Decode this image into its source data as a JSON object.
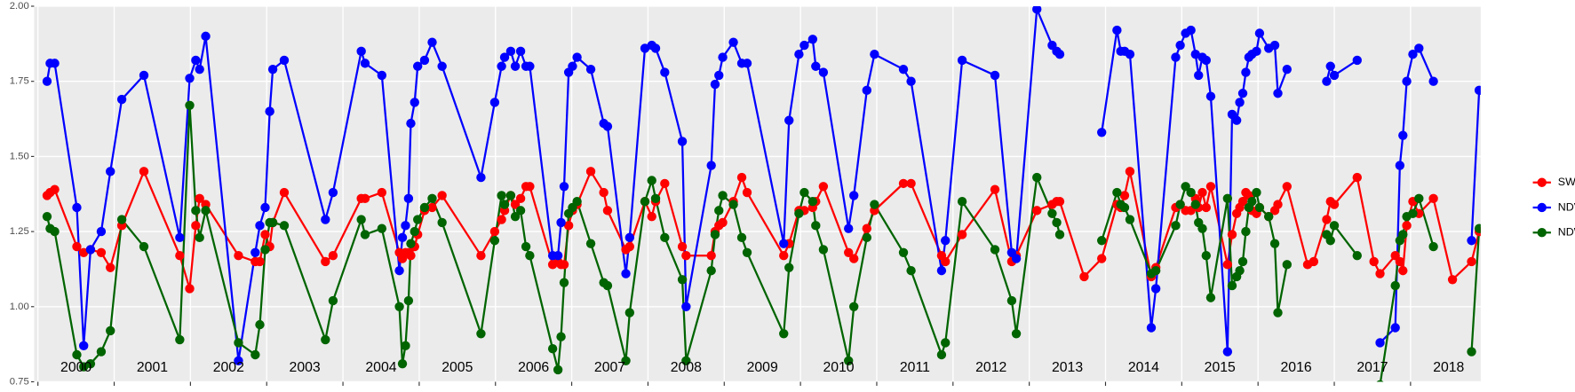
{
  "chart_data": {
    "type": "line",
    "x": [
      2000.12,
      2000.16,
      2000.22,
      2000.51,
      2000.6,
      2000.69,
      2000.83,
      2000.95,
      2001.1,
      2001.39,
      2001.86,
      2001.99,
      2002.07,
      2002.12,
      2002.2,
      2002.63,
      2002.85,
      2002.91,
      2002.98,
      2003.04,
      2003.08,
      2003.23,
      2003.77,
      2003.87,
      2004.24,
      2004.29,
      2004.51,
      2004.74,
      2004.78,
      2004.82,
      2004.86,
      2004.89,
      2004.94,
      2004.98,
      2005.07,
      2005.17,
      2005.3,
      2005.81,
      2005.99,
      2006.08,
      2006.12,
      2006.2,
      2006.26,
      2006.33,
      2006.4,
      2006.45,
      2006.75,
      2006.82,
      2006.86,
      2006.9,
      2006.96,
      2007.01,
      2007.07,
      2007.25,
      2007.42,
      2007.47,
      2007.71,
      2007.76,
      2007.96,
      2008.05,
      2008.1,
      2008.22,
      2008.45,
      2008.5,
      2008.83,
      2008.88,
      2008.93,
      2008.98,
      2009.12,
      2009.23,
      2009.3,
      2009.78,
      2009.85,
      2009.98,
      2010.05,
      2010.16,
      2010.2,
      2010.3,
      2010.63,
      2010.7,
      2010.87,
      2010.97,
      2011.35,
      2011.45,
      2011.85,
      2011.9,
      2012.12,
      2012.55,
      2012.77,
      2012.83,
      2013.1,
      2013.3,
      2013.36,
      2013.4,
      2013.72,
      2013.95,
      2014.15,
      2014.2,
      2014.25,
      2014.32,
      2014.6,
      2014.66,
      2014.92,
      2014.98,
      2015.05,
      2015.12,
      2015.18,
      2015.22,
      2015.27,
      2015.32,
      2015.38,
      2015.6,
      2015.66,
      2015.72,
      2015.76,
      2015.8,
      2015.84,
      2015.88,
      2015.92,
      2015.98,
      2016.02,
      2016.14,
      2016.22,
      2016.26,
      2016.38,
      2016.65,
      2016.73,
      2016.9,
      2016.95,
      2017.0,
      2017.3,
      2017.52,
      2017.6,
      2017.8,
      2017.86,
      2017.9,
      2017.95,
      2018.03,
      2018.11,
      2018.3,
      2018.55,
      2018.8,
      2018.9
    ],
    "series": [
      {
        "name": "SWIR",
        "color": "#ff0000",
        "values": [
          1.37,
          1.38,
          1.39,
          1.2,
          1.18,
          1.19,
          1.18,
          1.13,
          1.27,
          1.45,
          1.17,
          1.06,
          1.27,
          1.36,
          1.34,
          1.17,
          1.15,
          1.15,
          1.24,
          1.2,
          1.28,
          1.38,
          1.15,
          1.17,
          1.36,
          1.36,
          1.38,
          1.18,
          1.16,
          1.18,
          1.18,
          1.17,
          1.2,
          1.24,
          1.32,
          1.33,
          1.37,
          1.17,
          1.25,
          1.29,
          1.32,
          1.37,
          1.34,
          1.36,
          1.4,
          1.4,
          1.14,
          1.15,
          1.14,
          1.14,
          1.27,
          1.32,
          1.34,
          1.45,
          1.38,
          1.32,
          1.19,
          1.2,
          1.35,
          1.3,
          1.35,
          1.41,
          1.2,
          1.17,
          1.17,
          1.25,
          1.27,
          1.28,
          1.35,
          1.43,
          1.38,
          1.17,
          1.21,
          1.32,
          1.32,
          1.33,
          1.35,
          1.4,
          1.18,
          1.16,
          1.26,
          1.32,
          1.41,
          1.41,
          1.17,
          1.15,
          1.24,
          1.39,
          1.15,
          1.17,
          1.32,
          1.34,
          1.35,
          1.35,
          1.1,
          1.16,
          1.34,
          1.33,
          1.37,
          1.45,
          1.1,
          1.13,
          1.33,
          1.34,
          1.32,
          1.32,
          1.36,
          1.33,
          1.38,
          1.33,
          1.4,
          1.14,
          1.24,
          1.31,
          1.33,
          1.35,
          1.38,
          1.37,
          1.32,
          1.31,
          1.33,
          1.3,
          1.32,
          1.34,
          1.4,
          1.14,
          1.15,
          1.29,
          1.35,
          1.34,
          1.43,
          1.15,
          1.11,
          1.17,
          1.15,
          1.12,
          1.27,
          1.35,
          1.31,
          1.36,
          1.09,
          1.15,
          1.25
        ]
      },
      {
        "name": "NDVI",
        "color": "#0000ff",
        "values": [
          1.75,
          1.81,
          1.81,
          1.33,
          0.87,
          1.19,
          1.25,
          1.45,
          1.69,
          1.77,
          1.23,
          1.76,
          1.82,
          1.79,
          1.9,
          0.82,
          1.18,
          1.27,
          1.33,
          1.65,
          1.79,
          1.82,
          1.29,
          1.38,
          1.85,
          1.81,
          1.77,
          1.12,
          1.23,
          1.27,
          1.36,
          1.61,
          1.68,
          1.8,
          1.82,
          1.88,
          1.8,
          1.43,
          1.68,
          1.8,
          1.83,
          1.85,
          1.8,
          1.85,
          1.8,
          1.8,
          1.17,
          1.17,
          1.28,
          1.4,
          1.78,
          1.8,
          1.83,
          1.79,
          1.61,
          1.6,
          1.11,
          1.23,
          1.86,
          1.87,
          1.86,
          1.78,
          1.55,
          1.0,
          1.47,
          1.74,
          1.77,
          1.83,
          1.88,
          1.81,
          1.81,
          1.21,
          1.62,
          1.84,
          1.87,
          1.89,
          1.8,
          1.78,
          1.26,
          1.37,
          1.72,
          1.84,
          1.79,
          1.75,
          1.12,
          1.22,
          1.82,
          1.77,
          1.18,
          1.16,
          1.99,
          1.87,
          1.85,
          1.84,
          null,
          1.58,
          1.92,
          1.85,
          1.85,
          1.84,
          0.93,
          1.06,
          1.83,
          1.87,
          1.91,
          1.92,
          1.84,
          1.77,
          1.83,
          1.82,
          1.7,
          0.85,
          1.64,
          1.62,
          1.68,
          1.71,
          1.78,
          1.83,
          1.84,
          1.85,
          1.91,
          1.86,
          1.87,
          1.71,
          1.79,
          null,
          null,
          1.75,
          1.8,
          1.77,
          1.82,
          null,
          0.88,
          0.93,
          1.47,
          1.57,
          1.75,
          1.84,
          1.86,
          1.75,
          null,
          1.22,
          1.72
        ]
      },
      {
        "name": "NDWI",
        "color": "#006400",
        "values": [
          1.3,
          1.26,
          1.25,
          0.84,
          0.8,
          0.81,
          0.85,
          0.92,
          1.29,
          1.2,
          0.89,
          1.67,
          1.32,
          1.23,
          1.32,
          0.88,
          0.84,
          0.94,
          1.19,
          1.28,
          1.28,
          1.27,
          0.89,
          1.02,
          1.29,
          1.24,
          1.26,
          1.0,
          0.81,
          0.87,
          1.02,
          1.21,
          1.25,
          1.29,
          1.33,
          1.36,
          1.28,
          0.91,
          1.22,
          1.37,
          1.34,
          1.37,
          1.3,
          1.32,
          1.2,
          1.17,
          0.86,
          0.79,
          0.9,
          1.08,
          1.31,
          1.33,
          1.35,
          1.21,
          1.08,
          1.07,
          0.82,
          0.98,
          1.35,
          1.42,
          1.36,
          1.23,
          1.09,
          0.82,
          1.12,
          1.24,
          1.32,
          1.37,
          1.34,
          1.23,
          1.18,
          0.91,
          1.13,
          1.31,
          1.38,
          1.35,
          1.27,
          1.19,
          0.82,
          1.0,
          1.23,
          1.34,
          1.18,
          1.12,
          0.84,
          0.88,
          1.35,
          1.19,
          1.02,
          0.91,
          1.43,
          1.31,
          1.28,
          1.24,
          null,
          1.22,
          1.38,
          1.34,
          1.33,
          1.29,
          1.11,
          1.12,
          1.27,
          1.34,
          1.4,
          1.38,
          1.34,
          1.28,
          1.26,
          1.17,
          1.03,
          1.36,
          1.07,
          1.1,
          1.12,
          1.15,
          1.25,
          1.33,
          1.35,
          1.38,
          1.33,
          1.3,
          1.21,
          0.98,
          1.14,
          null,
          null,
          1.24,
          1.22,
          1.27,
          1.17,
          null,
          0.74,
          1.07,
          1.22,
          1.24,
          1.3,
          1.31,
          1.36,
          1.2,
          null,
          0.85,
          1.26
        ]
      }
    ],
    "xlim": [
      1999.95,
      2018.92
    ],
    "xticks": [
      2000,
      2001,
      2002,
      2003,
      2004,
      2005,
      2006,
      2007,
      2008,
      2009,
      2010,
      2011,
      2012,
      2013,
      2014,
      2015,
      2016,
      2017,
      2018
    ],
    "ylim": [
      0.75,
      2.0
    ],
    "yticks": [
      0.75,
      {
        "value": 1.0,
        "label": "1.00"
      },
      1.25,
      {
        "value": 1.5,
        "label": "1.50"
      },
      1.75,
      {
        "value": 2.0,
        "label": "2.00"
      }
    ],
    "annotations": [
      {
        "text": "2000",
        "x": 2000.5
      },
      {
        "text": "2001",
        "x": 2001.5
      },
      {
        "text": "2002",
        "x": 2002.5
      },
      {
        "text": "2003",
        "x": 2003.5
      },
      {
        "text": "2004",
        "x": 2004.5
      },
      {
        "text": "2005",
        "x": 2005.5
      },
      {
        "text": "2006",
        "x": 2006.5
      },
      {
        "text": "2007",
        "x": 2007.5
      },
      {
        "text": "2008",
        "x": 2008.5
      },
      {
        "text": "2009",
        "x": 2009.5
      },
      {
        "text": "2010",
        "x": 2010.5
      },
      {
        "text": "2011",
        "x": 2011.5
      },
      {
        "text": "2012",
        "x": 2012.5
      },
      {
        "text": "2013",
        "x": 2013.5
      },
      {
        "text": "2014",
        "x": 2014.5
      },
      {
        "text": "2015",
        "x": 2015.5
      },
      {
        "text": "2016",
        "x": 2016.5
      },
      {
        "text": "2017",
        "x": 2017.5
      },
      {
        "text": "2018",
        "x": 2018.5
      }
    ],
    "grid": true,
    "legend": "right"
  }
}
